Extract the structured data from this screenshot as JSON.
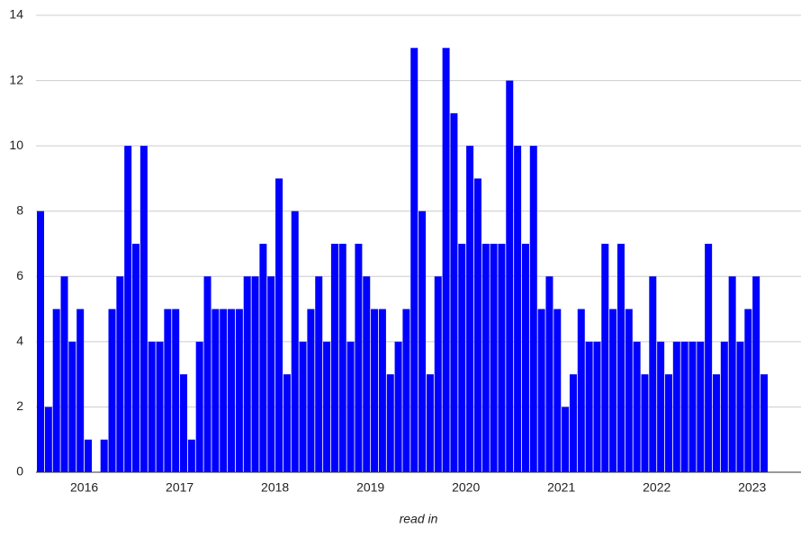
{
  "chart_data": {
    "type": "bar",
    "x_label": "read in",
    "categories": [
      null,
      null,
      null,
      null,
      null,
      null,
      "2016",
      null,
      null,
      null,
      null,
      null,
      null,
      null,
      null,
      null,
      null,
      null,
      "2017",
      null,
      null,
      null,
      null,
      null,
      null,
      null,
      null,
      null,
      null,
      null,
      "2018",
      null,
      null,
      null,
      null,
      null,
      null,
      null,
      null,
      null,
      null,
      null,
      "2019",
      null,
      null,
      null,
      null,
      null,
      null,
      null,
      null,
      null,
      null,
      null,
      "2020",
      null,
      null,
      null,
      null,
      null,
      null,
      null,
      null,
      null,
      null,
      null,
      "2021",
      null,
      null,
      null,
      null,
      null,
      null,
      null,
      null,
      null,
      null,
      null,
      "2022",
      null,
      null,
      null,
      null,
      null,
      null,
      null,
      null,
      null,
      null,
      null,
      "2023",
      null
    ],
    "values": [
      8,
      2,
      5,
      6,
      4,
      5,
      1,
      0,
      1,
      5,
      6,
      10,
      7,
      10,
      4,
      4,
      5,
      5,
      3,
      1,
      4,
      6,
      5,
      5,
      5,
      5,
      6,
      6,
      7,
      6,
      9,
      3,
      8,
      4,
      5,
      6,
      4,
      7,
      7,
      4,
      7,
      6,
      5,
      5,
      3,
      4,
      5,
      13,
      8,
      3,
      6,
      13,
      11,
      7,
      10,
      9,
      7,
      7,
      7,
      12,
      10,
      7,
      10,
      5,
      6,
      5,
      2,
      3,
      5,
      4,
      4,
      7,
      5,
      7,
      5,
      4,
      3,
      6,
      4,
      3,
      4,
      4,
      4,
      4,
      7,
      3,
      4,
      6,
      4,
      5,
      6,
      3
    ],
    "color": "#0000ff",
    "ylim": [
      0,
      14
    ],
    "yticks": [
      0,
      2,
      4,
      6,
      8,
      10,
      12,
      14
    ],
    "grid": true
  }
}
